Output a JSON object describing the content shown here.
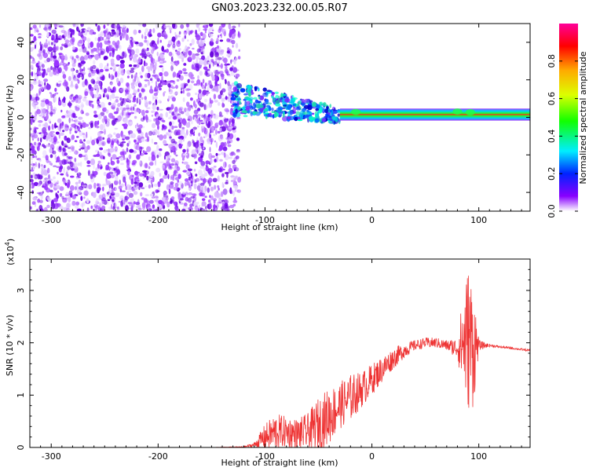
{
  "title": "GN03.2023.232.00.05.R07",
  "chart_data": [
    {
      "type": "heatmap",
      "name": "spectrogram",
      "xlabel": "Height of straight line (km)",
      "ylabel": "Frequency (Hz)",
      "xlim": [
        -320,
        148
      ],
      "ylim": [
        -50,
        50
      ],
      "xticks": [
        -300,
        -200,
        -100,
        0,
        100
      ],
      "xtick_labels": [
        "-300",
        "-200",
        "-100",
        "0",
        "100"
      ],
      "yticks": [
        -40,
        -20,
        0,
        20,
        40
      ],
      "ytick_labels": [
        "-40",
        "-20",
        "0",
        "20",
        "40"
      ],
      "noise_region_x": [
        -320,
        -130
      ],
      "transition_region_x": [
        -130,
        -30
      ],
      "tone_center_hz": 1.5,
      "tone_region_x": [
        -30,
        148
      ],
      "colorbar": {
        "label": "Normalized spectral amplitude",
        "range": [
          0,
          1
        ],
        "ticks": [
          0.0,
          0.2,
          0.4,
          0.6,
          0.8
        ],
        "tick_labels": [
          "0.0",
          "0.2",
          "0.4",
          "0.6",
          "0.8"
        ]
      }
    },
    {
      "type": "line",
      "name": "snr",
      "xlabel": "Height of straight line (km)",
      "ylabel": "SNR (10 * v/v)",
      "scale_label": "(x10",
      "scale_exponent": "4",
      "scale_suffix": ")",
      "xlim": [
        -320,
        148
      ],
      "ylim": [
        0,
        3.6
      ],
      "xticks": [
        -300,
        -200,
        -100,
        0,
        100
      ],
      "xtick_labels": [
        "-300",
        "-200",
        "-100",
        "0",
        "100"
      ],
      "yticks": [
        0,
        1,
        2,
        3
      ],
      "ytick_labels": [
        "0",
        "1",
        "2",
        "3"
      ],
      "color": "#ee3333",
      "series": [
        {
          "name": "SNR",
          "x": [
            -320,
            -250,
            -200,
            -150,
            -120,
            -110,
            -100,
            -90,
            -80,
            -70,
            -60,
            -50,
            -40,
            -30,
            -20,
            -10,
            0,
            10,
            20,
            30,
            40,
            50,
            60,
            70,
            80,
            85,
            90,
            95,
            100,
            110,
            120,
            130,
            148
          ],
          "y": [
            0.0,
            0.0,
            0.0,
            0.0,
            0.01,
            0.05,
            0.2,
            0.3,
            0.3,
            0.25,
            0.3,
            0.45,
            0.6,
            0.8,
            0.95,
            1.1,
            1.3,
            1.5,
            1.7,
            1.85,
            1.95,
            2.0,
            2.0,
            1.95,
            1.9,
            2.0,
            2.1,
            1.95,
            1.95,
            1.95,
            1.92,
            1.9,
            1.85
          ],
          "noise_amplitude": [
            0,
            0,
            0,
            0,
            0.01,
            0.05,
            0.25,
            0.35,
            0.3,
            0.3,
            0.35,
            0.5,
            0.55,
            0.45,
            0.45,
            0.35,
            0.3,
            0.25,
            0.2,
            0.15,
            0.1,
            0.1,
            0.1,
            0.1,
            0.2,
            0.9,
            1.4,
            1.2,
            0.1,
            0.03,
            0.02,
            0.02,
            0.02
          ]
        }
      ]
    }
  ]
}
